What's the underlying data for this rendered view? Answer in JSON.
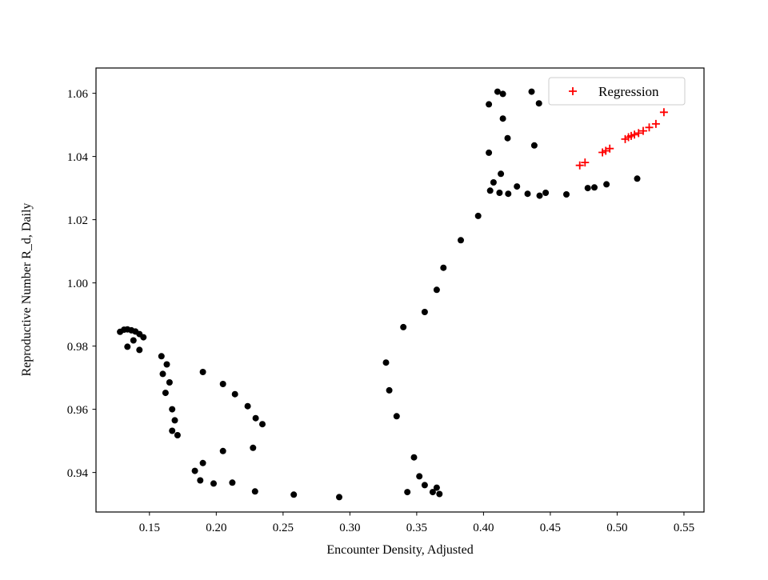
{
  "figure": {
    "background_color": "#ffffff",
    "axes_edge_color": "#000000",
    "legend_border_color": "#cccccc"
  },
  "chart_data": {
    "type": "scatter",
    "title": "",
    "xlabel": "Encounter Density, Adjusted",
    "ylabel": "Reproductive Number R_d, Daily",
    "xlim": [
      0.11,
      0.565
    ],
    "ylim": [
      0.9275,
      1.068
    ],
    "grid": false,
    "xticks": {
      "values": [
        0.15,
        0.2,
        0.25,
        0.3,
        0.35,
        0.4,
        0.45,
        0.5,
        0.55
      ],
      "labels": [
        "0.15",
        "0.20",
        "0.25",
        "0.30",
        "0.35",
        "0.40",
        "0.45",
        "0.50",
        "0.55"
      ]
    },
    "yticks": {
      "values": [
        0.94,
        0.96,
        0.98,
        1.0,
        1.02,
        1.04,
        1.06
      ],
      "labels": [
        "0.94",
        "0.96",
        "0.98",
        "1.00",
        "1.02",
        "1.04",
        "1.06"
      ]
    },
    "legend": {
      "position": "upper right",
      "entries": [
        {
          "label": "Regression",
          "marker": "plus",
          "color": "#ff0000"
        }
      ]
    },
    "series": [
      {
        "name": "daily-reproductive-number",
        "marker": "circle",
        "color": "#000000",
        "points": [
          [
            0.128,
            0.9845
          ],
          [
            0.131,
            0.9852
          ],
          [
            0.1335,
            0.9853
          ],
          [
            0.1365,
            0.985
          ],
          [
            0.1395,
            0.9846
          ],
          [
            0.1425,
            0.9838
          ],
          [
            0.1455,
            0.9828
          ],
          [
            0.138,
            0.9818
          ],
          [
            0.1335,
            0.9798
          ],
          [
            0.1425,
            0.9788
          ],
          [
            0.159,
            0.9768
          ],
          [
            0.163,
            0.9742
          ],
          [
            0.16,
            0.9712
          ],
          [
            0.165,
            0.9685
          ],
          [
            0.162,
            0.9652
          ],
          [
            0.167,
            0.96
          ],
          [
            0.169,
            0.9565
          ],
          [
            0.167,
            0.9532
          ],
          [
            0.171,
            0.9518
          ],
          [
            0.19,
            0.9718
          ],
          [
            0.205,
            0.968
          ],
          [
            0.214,
            0.9648
          ],
          [
            0.2235,
            0.961
          ],
          [
            0.2295,
            0.9572
          ],
          [
            0.2345,
            0.9553
          ],
          [
            0.2275,
            0.9478
          ],
          [
            0.205,
            0.9468
          ],
          [
            0.19,
            0.943
          ],
          [
            0.184,
            0.9405
          ],
          [
            0.188,
            0.9375
          ],
          [
            0.198,
            0.9365
          ],
          [
            0.212,
            0.9368
          ],
          [
            0.229,
            0.934
          ],
          [
            0.258,
            0.933
          ],
          [
            0.292,
            0.9322
          ],
          [
            0.343,
            0.9338
          ],
          [
            0.352,
            0.9388
          ],
          [
            0.348,
            0.9448
          ],
          [
            0.356,
            0.936
          ],
          [
            0.362,
            0.9338
          ],
          [
            0.367,
            0.9332
          ],
          [
            0.365,
            0.9352
          ],
          [
            0.335,
            0.9578
          ],
          [
            0.3295,
            0.966
          ],
          [
            0.327,
            0.9748
          ],
          [
            0.34,
            0.986
          ],
          [
            0.356,
            0.9908
          ],
          [
            0.365,
            0.9978
          ],
          [
            0.37,
            1.0048
          ],
          [
            0.383,
            1.0135
          ],
          [
            0.396,
            1.0212
          ],
          [
            0.404,
            1.0565
          ],
          [
            0.4105,
            1.0605
          ],
          [
            0.4145,
            1.0598
          ],
          [
            0.436,
            1.0605
          ],
          [
            0.4415,
            1.0568
          ],
          [
            0.4145,
            1.052
          ],
          [
            0.418,
            1.0458
          ],
          [
            0.404,
            1.0412
          ],
          [
            0.438,
            1.0435
          ],
          [
            0.413,
            1.0345
          ],
          [
            0.4075,
            1.0318
          ],
          [
            0.405,
            1.0292
          ],
          [
            0.412,
            1.0285
          ],
          [
            0.4185,
            1.0282
          ],
          [
            0.425,
            1.0305
          ],
          [
            0.433,
            1.0282
          ],
          [
            0.442,
            1.0276
          ],
          [
            0.4465,
            1.0285
          ],
          [
            0.462,
            1.028
          ],
          [
            0.478,
            1.03
          ],
          [
            0.483,
            1.0302
          ],
          [
            0.492,
            1.0312
          ],
          [
            0.515,
            1.033
          ]
        ]
      },
      {
        "name": "regression",
        "marker": "plus",
        "color": "#ff0000",
        "points": [
          [
            0.472,
            1.0372
          ],
          [
            0.476,
            1.0381
          ],
          [
            0.489,
            1.0413
          ],
          [
            0.4915,
            1.0418
          ],
          [
            0.4945,
            1.0425
          ],
          [
            0.506,
            1.0455
          ],
          [
            0.5085,
            1.0461
          ],
          [
            0.5105,
            1.0465
          ],
          [
            0.513,
            1.0469
          ],
          [
            0.516,
            1.0474
          ],
          [
            0.5195,
            1.0481
          ],
          [
            0.524,
            1.0492
          ],
          [
            0.529,
            1.0503
          ],
          [
            0.535,
            1.054
          ]
        ]
      }
    ]
  }
}
